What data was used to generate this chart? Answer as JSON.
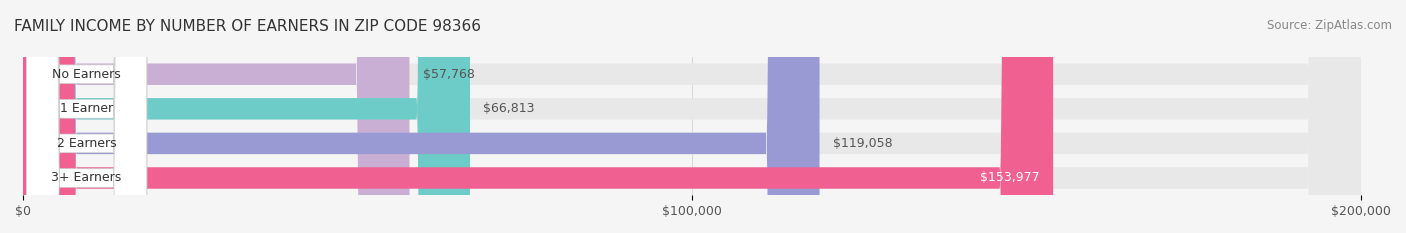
{
  "title": "FAMILY INCOME BY NUMBER OF EARNERS IN ZIP CODE 98366",
  "source": "Source: ZipAtlas.com",
  "categories": [
    "No Earners",
    "1 Earner",
    "2 Earners",
    "3+ Earners"
  ],
  "values": [
    57768,
    66813,
    119058,
    153977
  ],
  "bar_colors": [
    "#c9afd4",
    "#6eccc8",
    "#9999d4",
    "#f06090"
  ],
  "bar_bg_color": "#eeeeee",
  "value_labels": [
    "$57,768",
    "$66,813",
    "$119,058",
    "$153,977"
  ],
  "xmax": 200000,
  "xticks": [
    0,
    100000,
    200000
  ],
  "xtick_labels": [
    "$0",
    "$100,000",
    "$200,000"
  ],
  "background_color": "#f5f5f5",
  "title_fontsize": 11,
  "source_fontsize": 8.5,
  "label_fontsize": 9,
  "value_fontsize": 9
}
